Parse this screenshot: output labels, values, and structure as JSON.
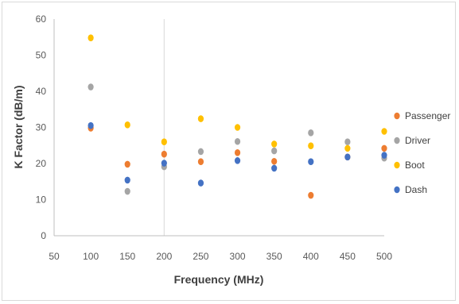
{
  "chart_data": {
    "type": "scatter",
    "title": "",
    "xlabel": "Frequency (MHz)",
    "ylabel": "K Factor (dB/m)",
    "xlim": [
      50,
      500
    ],
    "ylim": [
      0,
      60
    ],
    "x_ticks": [
      "50",
      "100",
      "150",
      "200",
      "250",
      "300",
      "350",
      "400",
      "450",
      "500"
    ],
    "y_ticks": [
      "0",
      "10",
      "20",
      "30",
      "40",
      "50",
      "60"
    ],
    "grid": "vertical line at 200 only",
    "legend_position": "right",
    "series": [
      {
        "name": "Passenger",
        "color": "#ED7D31",
        "points": [
          [
            100,
            29.8
          ],
          [
            150,
            19.8
          ],
          [
            200,
            22.6
          ],
          [
            250,
            20.5
          ],
          [
            300,
            23.0
          ],
          [
            350,
            20.6
          ],
          [
            400,
            11.2
          ],
          [
            450,
            21.8
          ],
          [
            500,
            24.2
          ]
        ]
      },
      {
        "name": "Driver",
        "color": "#A5A5A5",
        "points": [
          [
            100,
            41.2
          ],
          [
            150,
            12.3
          ],
          [
            200,
            19.1
          ],
          [
            250,
            23.3
          ],
          [
            300,
            26.1
          ],
          [
            350,
            23.5
          ],
          [
            400,
            28.5
          ],
          [
            450,
            26.0
          ],
          [
            500,
            21.5
          ]
        ]
      },
      {
        "name": "Boot",
        "color": "#FFC000",
        "points": [
          [
            100,
            54.8
          ],
          [
            150,
            30.7
          ],
          [
            200,
            26.0
          ],
          [
            250,
            32.4
          ],
          [
            300,
            30.0
          ],
          [
            350,
            25.4
          ],
          [
            400,
            24.9
          ],
          [
            450,
            24.2
          ],
          [
            500,
            28.9
          ]
        ]
      },
      {
        "name": "Dash",
        "color": "#4472C4",
        "points": [
          [
            100,
            30.5
          ],
          [
            150,
            15.4
          ],
          [
            200,
            20.1
          ],
          [
            250,
            14.6
          ],
          [
            300,
            20.8
          ],
          [
            350,
            18.7
          ],
          [
            400,
            20.5
          ],
          [
            450,
            21.8
          ],
          [
            500,
            22.3
          ]
        ]
      }
    ]
  }
}
